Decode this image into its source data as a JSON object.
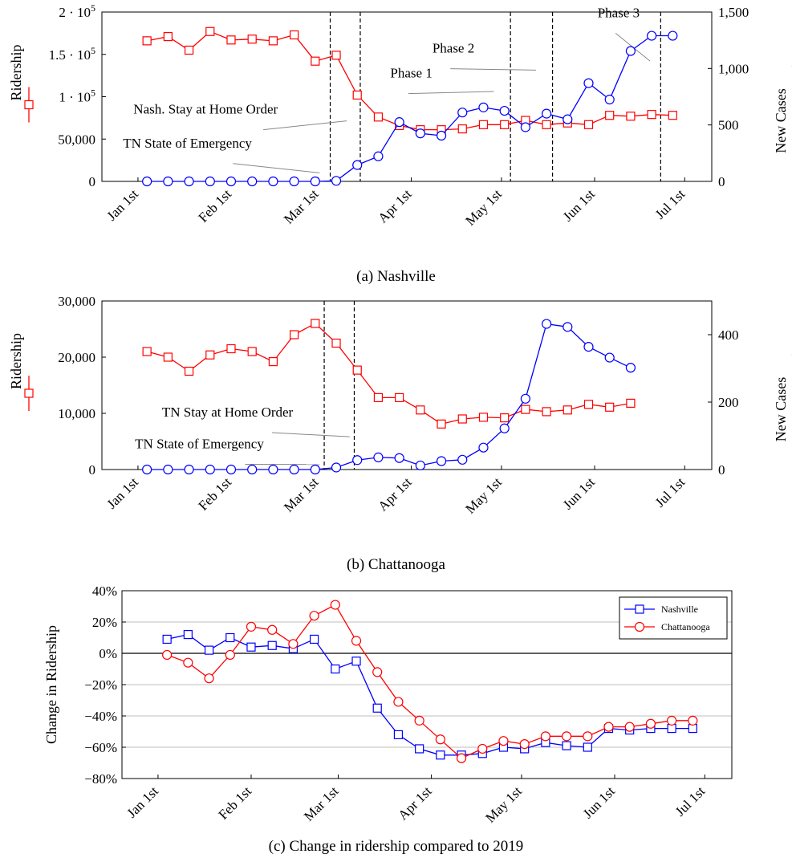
{
  "captions": {
    "a": "(a) Nashville",
    "b": "(b) Chattanooga",
    "c": "(c) Change in ridership compared to 2019"
  },
  "colors": {
    "ridership": "#ff0000",
    "cases": "#0000ff",
    "grid": "#bfbfbf"
  },
  "chart_data": [
    {
      "type": "line",
      "id": "nashville",
      "x_ticks": [
        "Jan 1st",
        "Feb 1st",
        "Mar 1st",
        "Apr 1st",
        "May 1st",
        "Jun 1st",
        "Jul 1st"
      ],
      "x_tick_days": [
        0,
        31,
        60,
        91,
        121,
        152,
        182
      ],
      "xlim": [
        -12,
        191
      ],
      "y_left": {
        "label": "Ridership",
        "lim": [
          0,
          200000
        ],
        "ticks": [
          0,
          50000,
          100000,
          150000,
          200000
        ],
        "tick_labels": [
          "0",
          "50,000",
          "1 · 10^5",
          "1.5 · 10^5",
          "2 · 10^5"
        ]
      },
      "y_right": {
        "label": "New Cases",
        "lim": [
          0,
          1500
        ],
        "ticks": [
          0,
          500,
          1000,
          1500
        ],
        "tick_labels": [
          "0",
          "500",
          "1,000",
          "1,500"
        ]
      },
      "series": [
        {
          "name": "Ridership",
          "axis": "left",
          "marker": "square",
          "color": "#ff0000",
          "x": [
            3,
            10,
            17,
            24,
            31,
            38,
            45,
            52,
            59,
            66,
            73,
            80,
            87,
            94,
            101,
            108,
            115,
            122,
            129,
            136,
            143,
            150,
            157,
            164,
            171,
            178
          ],
          "y": [
            166000,
            171000,
            155000,
            177000,
            167000,
            168000,
            166000,
            173000,
            142000,
            149000,
            102000,
            76000,
            66000,
            61000,
            61000,
            62000,
            67000,
            67000,
            72000,
            67000,
            69000,
            67000,
            78000,
            77000,
            79000,
            78000
          ]
        },
        {
          "name": "New Cases",
          "axis": "right",
          "marker": "circle",
          "color": "#0000ff",
          "x": [
            3,
            10,
            17,
            24,
            31,
            38,
            45,
            52,
            59,
            66,
            73,
            80,
            87,
            94,
            101,
            108,
            115,
            122,
            129,
            136,
            143,
            150,
            157,
            164,
            171,
            178
          ],
          "y": [
            0,
            0,
            0,
            0,
            0,
            0,
            0,
            0,
            0,
            5,
            145,
            222,
            525,
            425,
            405,
            610,
            655,
            625,
            480,
            600,
            550,
            870,
            725,
            1155,
            1290,
            1290
          ]
        }
      ],
      "vlines": [
        {
          "x": 64
        },
        {
          "x": 74
        },
        {
          "x": 124
        },
        {
          "x": 138
        },
        {
          "x": 174
        }
      ],
      "annotations": [
        {
          "text": "TN State of Emergency",
          "x": -5,
          "y": 300,
          "to_x": 61,
          "to_y": 90
        },
        {
          "text": "Nash. Stay at Home Order",
          "x": -1.5,
          "y": 600,
          "to_x": 70,
          "to_y": 550
        },
        {
          "text": "Phase 1",
          "x": 84,
          "y": 920,
          "to_x": 119,
          "to_y": 810
        },
        {
          "text": "Phase 2",
          "x": 98,
          "y": 1140,
          "to_x": 133,
          "to_y": 1000
        },
        {
          "text": "Phase 3",
          "x": 153,
          "y": 1455,
          "to_x": 171,
          "to_y": 1080
        }
      ]
    },
    {
      "type": "line",
      "id": "chattanooga",
      "x_ticks": [
        "Jan 1st",
        "Feb 1st",
        "Mar 1st",
        "Apr 1st",
        "May 1st",
        "Jun 1st",
        "Jul 1st"
      ],
      "x_tick_days": [
        0,
        31,
        60,
        91,
        121,
        152,
        182
      ],
      "xlim": [
        -12,
        191
      ],
      "y_left": {
        "label": "Ridership",
        "lim": [
          0,
          30000
        ],
        "ticks": [
          0,
          10000,
          20000,
          30000
        ],
        "tick_labels": [
          "0",
          "10,000",
          "20,000",
          "30,000"
        ]
      },
      "y_right": {
        "label": "New Cases",
        "lim": [
          0,
          500
        ],
        "ticks": [
          0,
          200,
          400
        ],
        "tick_labels": [
          "0",
          "200",
          "400"
        ]
      },
      "series": [
        {
          "name": "Ridership",
          "axis": "left",
          "marker": "square",
          "color": "#ff0000",
          "x": [
            3,
            10,
            17,
            24,
            31,
            38,
            45,
            52,
            59,
            66,
            73,
            80,
            87,
            94,
            101,
            108,
            115,
            122,
            129,
            136,
            143,
            150,
            157,
            164
          ],
          "y": [
            21000,
            20000,
            17500,
            20400,
            21500,
            21000,
            19200,
            24000,
            26000,
            22500,
            17700,
            12800,
            12800,
            10600,
            8100,
            9000,
            9300,
            9200,
            10700,
            10300,
            10600,
            11600,
            11100,
            11800
          ]
        },
        {
          "name": "New Cases",
          "axis": "right",
          "marker": "circle",
          "color": "#0000ff",
          "x": [
            3,
            10,
            17,
            24,
            31,
            38,
            45,
            52,
            59,
            66,
            73,
            80,
            87,
            94,
            101,
            108,
            115,
            122,
            129,
            136,
            143,
            150,
            157,
            164
          ],
          "y": [
            0,
            0,
            0,
            0,
            0,
            0,
            0,
            0,
            0,
            6,
            28,
            36,
            34,
            12,
            25,
            29,
            65,
            122,
            210,
            432,
            423,
            364,
            332,
            302
          ]
        }
      ],
      "vlines": [
        {
          "x": 62
        },
        {
          "x": 72
        }
      ],
      "annotations": [
        {
          "text": "TN State of Emergency",
          "x": -1,
          "y": 63,
          "to_x": 61,
          "to_y": 20
        },
        {
          "text": "TN Stay at Home Order",
          "x": 8,
          "y": 157,
          "to_x": 71,
          "to_y": 102
        }
      ]
    },
    {
      "type": "line",
      "id": "change",
      "x_ticks": [
        "Jan 1st",
        "Feb 1st",
        "Mar 1st",
        "Apr 1st",
        "May 1st",
        "Jun 1st",
        "Jul 1st"
      ],
      "x_tick_days": [
        0,
        31,
        60,
        91,
        121,
        152,
        182
      ],
      "xlim": [
        -12,
        191
      ],
      "ylabel": "Change in Ridership",
      "ylim": [
        -80,
        40
      ],
      "yticks": [
        -80,
        -60,
        -40,
        -20,
        0,
        20,
        40
      ],
      "ytick_labels": [
        "−80%",
        "−60%",
        "−40%",
        "−20%",
        "0%",
        "20%",
        "40%"
      ],
      "grid": true,
      "legend": "top-right",
      "series": [
        {
          "name": "Nashville",
          "marker": "square",
          "color": "#0000ff",
          "x": [
            3,
            10,
            17,
            24,
            31,
            38,
            45,
            52,
            59,
            66,
            73,
            80,
            87,
            94,
            101,
            108,
            115,
            122,
            129,
            136,
            143,
            150,
            157,
            164,
            171,
            178
          ],
          "y": [
            9,
            12,
            2,
            10,
            4,
            5,
            3,
            9,
            -10,
            -5,
            -35,
            -52,
            -61,
            -65,
            -65,
            -64,
            -60,
            -61,
            -57,
            -59,
            -60,
            -48,
            -49,
            -48,
            -48,
            -48
          ]
        },
        {
          "name": "Chattanooga",
          "marker": "circle",
          "color": "#ff0000",
          "x": [
            3,
            10,
            17,
            24,
            31,
            38,
            45,
            52,
            59,
            66,
            73,
            80,
            87,
            94,
            101,
            108,
            115,
            122,
            129,
            136,
            143,
            150,
            157,
            164,
            171,
            178
          ],
          "y": [
            -1,
            -6,
            -16,
            -1,
            17,
            15,
            6,
            24,
            31,
            8,
            -12,
            -31,
            -43,
            -55,
            -67,
            -61,
            -56,
            -58,
            -53,
            -53,
            -53,
            -47,
            -47,
            -45,
            -43,
            -43
          ]
        }
      ]
    }
  ]
}
